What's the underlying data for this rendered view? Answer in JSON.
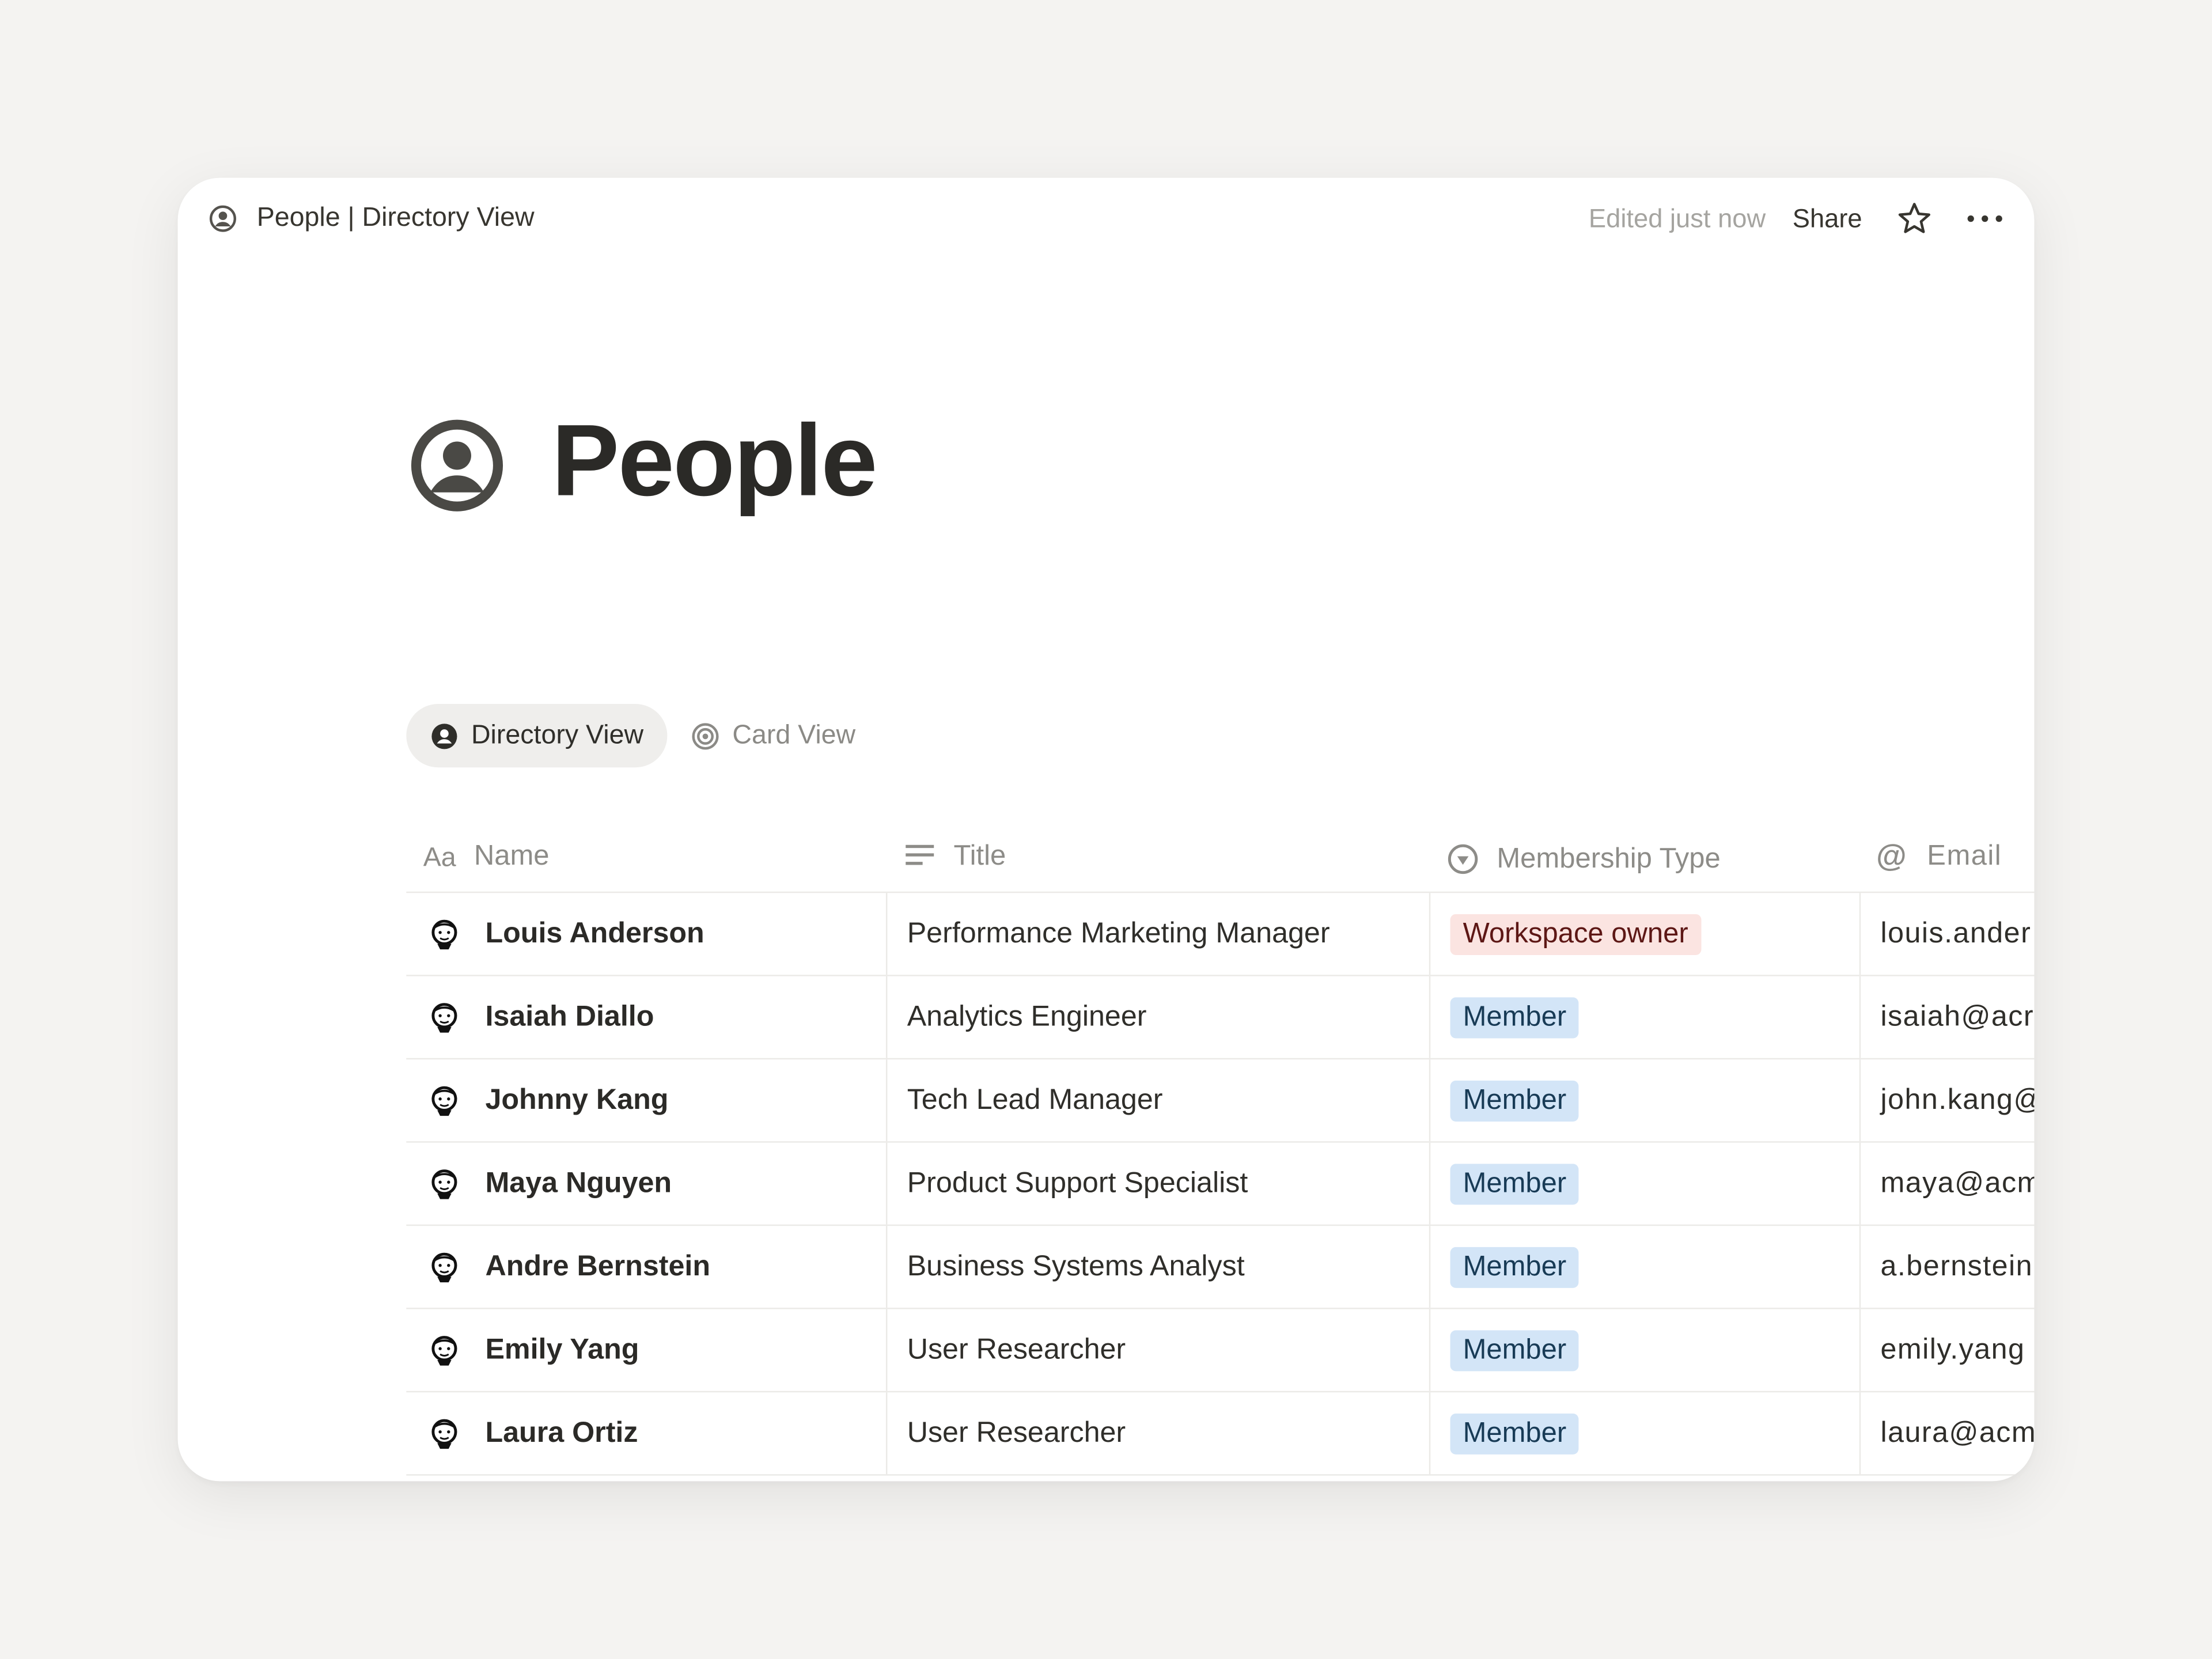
{
  "topbar": {
    "breadcrumb": "People | Directory View",
    "edited": "Edited just now",
    "share": "Share"
  },
  "page": {
    "title": "People"
  },
  "views": [
    {
      "label": "Directory View",
      "active": true
    },
    {
      "label": "Card View",
      "active": false
    }
  ],
  "columns": {
    "name": "Name",
    "title": "Title",
    "membership": "Membership Type",
    "email": "Email"
  },
  "badge_colors": {
    "Workspace owner": {
      "bg": "#fbe4e1",
      "fg": "#5d1715"
    },
    "Member": {
      "bg": "#d3e5f7",
      "fg": "#183b56"
    }
  },
  "rows": [
    {
      "name": "Louis Anderson",
      "title": "Performance Marketing Manager",
      "membership": "Workspace owner",
      "email": "louis.ander"
    },
    {
      "name": "Isaiah Diallo",
      "title": "Analytics Engineer",
      "membership": "Member",
      "email": "isaiah@acr"
    },
    {
      "name": "Johnny Kang",
      "title": "Tech Lead Manager",
      "membership": "Member",
      "email": "john.kang@"
    },
    {
      "name": "Maya Nguyen",
      "title": "Product Support Specialist",
      "membership": "Member",
      "email": "maya@acm"
    },
    {
      "name": "Andre Bernstein",
      "title": "Business Systems Analyst",
      "membership": "Member",
      "email": "a.bernstein"
    },
    {
      "name": "Emily Yang",
      "title": "User Researcher",
      "membership": "Member",
      "email": "emily.yang"
    },
    {
      "name": "Laura Ortiz",
      "title": "User Researcher",
      "membership": "Member",
      "email": "laura@acm"
    }
  ]
}
